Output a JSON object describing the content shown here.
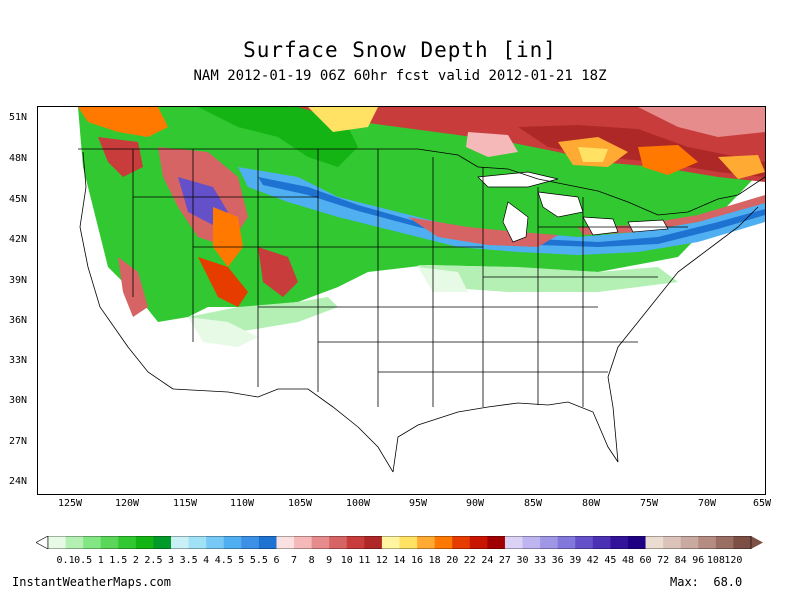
{
  "title": "Surface Snow Depth [in]",
  "subtitle": "NAM 2012-01-19 06Z 60hr fcst valid 2012-01-21 18Z",
  "latitude_labels": [
    "51N",
    "48N",
    "45N",
    "42N",
    "39N",
    "36N",
    "33N",
    "30N",
    "27N",
    "24N"
  ],
  "longitude_labels": [
    "125W",
    "120W",
    "115W",
    "110W",
    "105W",
    "100W",
    "95W",
    "90W",
    "85W",
    "80W",
    "75W",
    "70W",
    "65W"
  ],
  "scale": {
    "labels": [
      "0.1",
      "0.5",
      "1",
      "1.5",
      "2",
      "2.5",
      "3",
      "3.5",
      "4",
      "4.5",
      "5",
      "5.5",
      "6",
      "7",
      "8",
      "9",
      "10",
      "11",
      "12",
      "14",
      "16",
      "18",
      "20",
      "22",
      "24",
      "27",
      "30",
      "33",
      "36",
      "39",
      "42",
      "45",
      "48",
      "60",
      "72",
      "84",
      "96",
      "108",
      "120"
    ],
    "colors": [
      "#e6fae6",
      "#b4f0b4",
      "#82e682",
      "#5ad75a",
      "#32c832",
      "#14b414",
      "#009b28",
      "#c8f0f5",
      "#a0e1f5",
      "#78c8f5",
      "#50aff0",
      "#3c91e6",
      "#1e73d2",
      "#fae1e1",
      "#f5b9b9",
      "#e68c8c",
      "#d76464",
      "#c83c3c",
      "#af2828",
      "#fff5a0",
      "#ffe164",
      "#ffaa32",
      "#ff7800",
      "#e63c00",
      "#c81400",
      "#a00000",
      "#dcd2f5",
      "#beb4f0",
      "#a096e6",
      "#8278dc",
      "#6450c8",
      "#4b32b4",
      "#32149b",
      "#1e0082",
      "#ebdcd2",
      "#dcc3b9",
      "#c8aaa0",
      "#b48c82",
      "#9b6e64",
      "#7d5046"
    ]
  },
  "footer": {
    "site": "InstantWeatherMaps.com",
    "max_label": "Max:",
    "max_value": "68.0"
  }
}
